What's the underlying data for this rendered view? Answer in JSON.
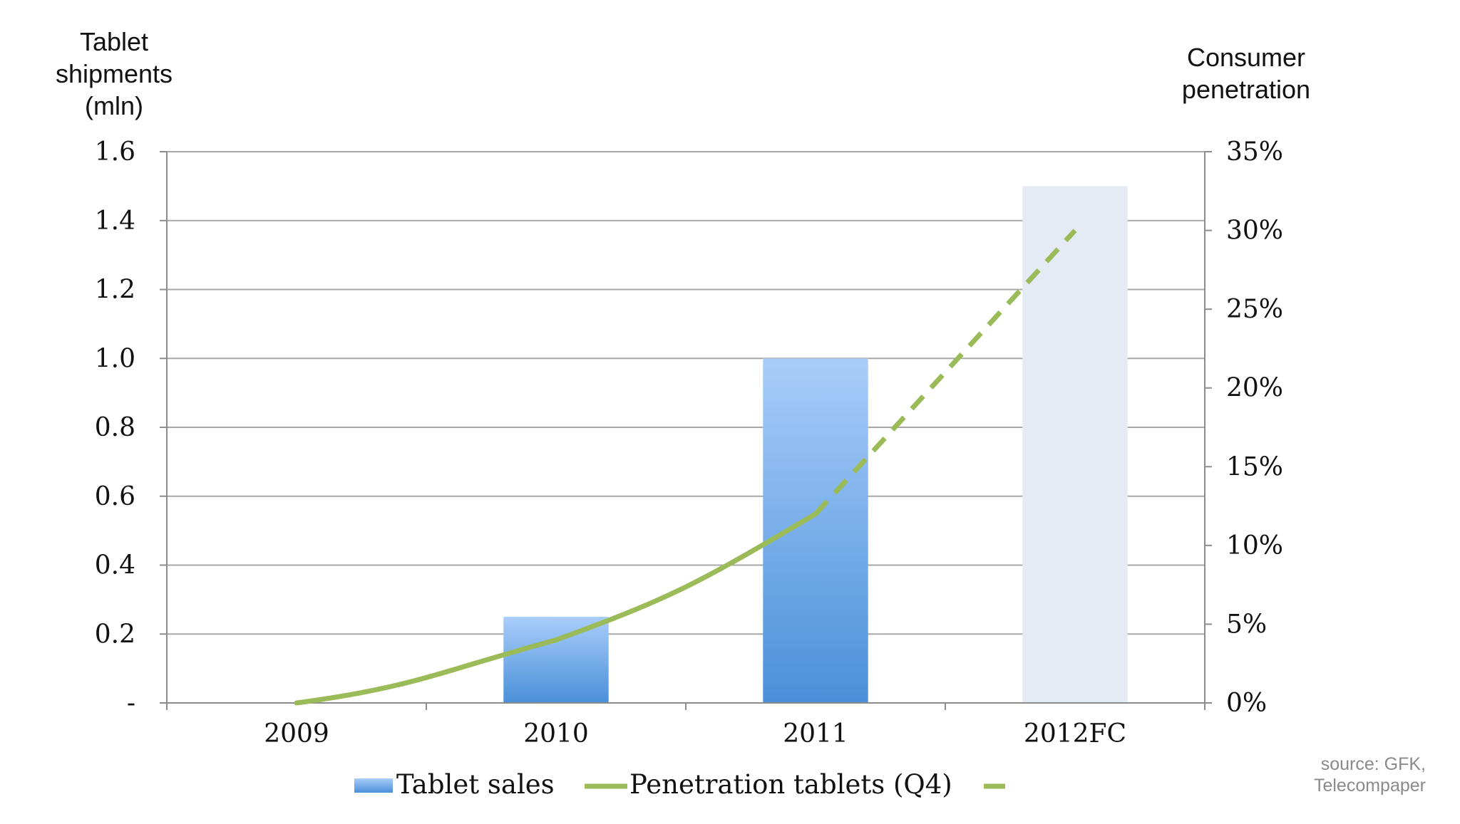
{
  "chart_data": {
    "type": "bar",
    "categories": [
      "2009",
      "2010",
      "2011",
      "2012FC"
    ],
    "left_axis": {
      "label": "Tablet shipments (mln)",
      "label_lines": [
        "Tablet",
        "shipments",
        "(mln)"
      ],
      "ylim": [
        0,
        1.6
      ],
      "ticks": [
        0,
        0.2,
        0.4,
        0.6,
        0.8,
        1.0,
        1.2,
        1.4,
        1.6
      ],
      "tick_labels": [
        "-",
        "0.2",
        "0.4",
        "0.6",
        "0.8",
        "1.0",
        "1.2",
        "1.4",
        "1.6"
      ]
    },
    "right_axis": {
      "label": "Consumer penetration",
      "label_lines": [
        "Consumer",
        "penetration"
      ],
      "ylim": [
        0,
        35
      ],
      "ticks": [
        0,
        5,
        10,
        15,
        20,
        25,
        30,
        35
      ],
      "tick_labels": [
        "0%",
        "5%",
        "10%",
        "15%",
        "20%",
        "25%",
        "30%",
        "35%"
      ]
    },
    "series": [
      {
        "name": "Tablet sales",
        "kind": "bar",
        "axis": "left",
        "values": [
          0,
          0.25,
          1.0,
          1.5
        ],
        "colors": {
          "actual_top": "#a9cdfa",
          "actual_bottom": "#4a90d9",
          "forecast": "#e4ebf5"
        },
        "forecast_index": 3
      },
      {
        "name": "Penetration tablets (Q4)",
        "kind": "line",
        "axis": "right",
        "values": [
          0,
          4,
          12,
          30
        ],
        "forecast_from_index": 2,
        "color": "#9bbb59"
      }
    ],
    "grid": true,
    "legend_position": "bottom"
  },
  "source": {
    "lines": [
      "source: GFK,",
      "Telecompaper"
    ]
  }
}
